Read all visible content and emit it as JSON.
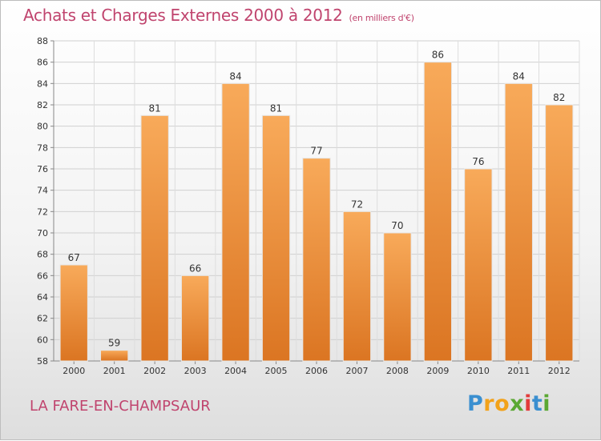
{
  "header": {
    "title": "Achats et Charges Externes 2000 à 2012",
    "unit": "(en milliers d'€)"
  },
  "footer": {
    "town": "LA FARE-EN-CHAMPSAUR",
    "logo_letters": [
      "P",
      "r",
      "o",
      "x",
      "i",
      "t",
      "i"
    ]
  },
  "colors": {
    "bar_light": "#f8aa5a",
    "bar_dark": "#db7522",
    "title": "#c0446e",
    "logo": [
      "#3a8fd0",
      "#f2a21a",
      "#f2a21a",
      "#5aa832",
      "#e23b3b",
      "#3a8fd0",
      "#5aa832"
    ]
  },
  "chart_data": {
    "type": "bar",
    "title": "Achats et Charges Externes 2000 à 2012",
    "xlabel": "",
    "ylabel": "",
    "categories": [
      "2000",
      "2001",
      "2002",
      "2003",
      "2004",
      "2005",
      "2006",
      "2007",
      "2008",
      "2009",
      "2010",
      "2011",
      "2012"
    ],
    "values": [
      67,
      59,
      81,
      66,
      84,
      81,
      77,
      72,
      70,
      86,
      76,
      84,
      82
    ],
    "ylim": [
      58,
      88
    ],
    "yticks": [
      58,
      60,
      62,
      64,
      66,
      68,
      70,
      72,
      74,
      76,
      78,
      80,
      82,
      84,
      86,
      88
    ],
    "grid": true
  }
}
